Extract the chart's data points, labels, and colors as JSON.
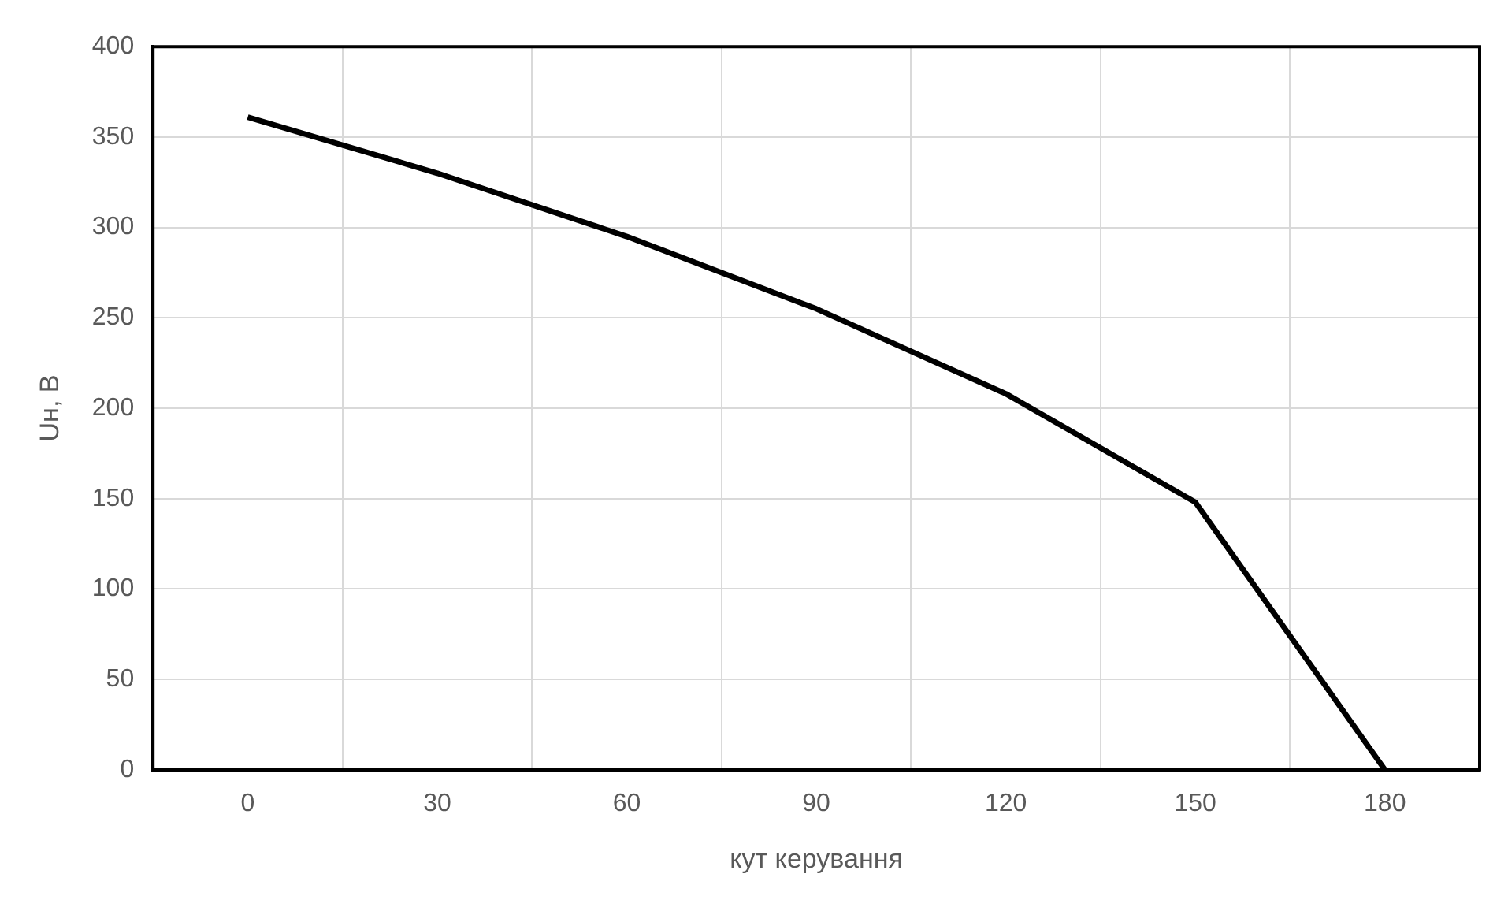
{
  "chart_data": {
    "type": "line",
    "xlabel": "кут керування",
    "ylabel": "Uн, В",
    "categories": [
      "0",
      "30",
      "60",
      "90",
      "120",
      "150",
      "180"
    ],
    "series": [
      {
        "color": "#000000",
        "values": [
          361,
          330,
          295,
          255,
          208,
          148,
          0
        ]
      }
    ],
    "ylim": [
      0,
      400
    ],
    "yticks": [
      0,
      50,
      100,
      150,
      200,
      250,
      300,
      350,
      400
    ],
    "grid": true,
    "legend": false,
    "marker": "none",
    "line_style": "solid"
  }
}
